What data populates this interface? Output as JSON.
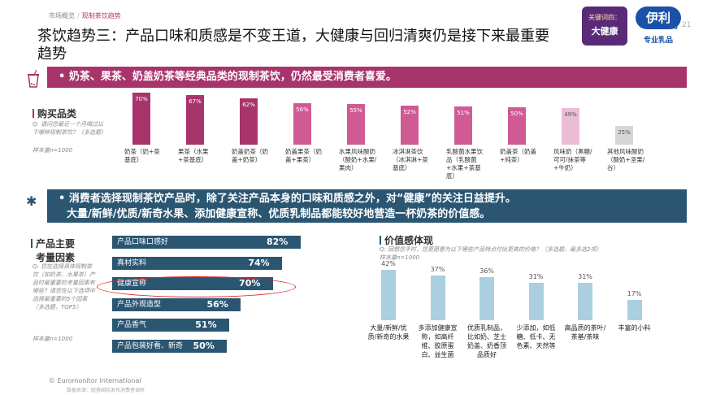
{
  "breadcrumb": {
    "parent": "市场概览",
    "current": "现制茶饮趋势"
  },
  "title": "茶饮趋势三：产品口味和质感是不变王道，大健康与回归清爽仍是接下来最重要趋势",
  "page_number": "21",
  "badge": {
    "line1": "关键词四：",
    "line2": "大健康"
  },
  "logo": {
    "mark": "伊利",
    "pro": "Pro",
    "sub": "专业乳品"
  },
  "banner1": "•  奶茶、果茶、奶盖奶茶等经典品类的现制茶饮，仍然最受消费者喜爱。",
  "banner2": {
    "line1": "•  消费者选择现制茶饮产品时，除了关注产品本身的口味和质感之外，对“健康”的关注日益提升。",
    "line2": "大量/新鲜/优质/新奇水果、添加健康宣称、优质乳制品都能较好地营造一杯奶茶的价值感。"
  },
  "purchase": {
    "heading": "购买品类",
    "note": "Q: 请问您最近一个月喝过以下哪种现制茶饮？（多选题）",
    "sample": "样本量n=1000",
    "colors": [
      "#a8346c",
      "#a8346c",
      "#a8346c",
      "#d05a94",
      "#d05a94",
      "#d05a94",
      "#d05a94",
      "#d05a94",
      "#ecbcd6",
      "#d6d6d6"
    ],
    "items": [
      {
        "label": "70%",
        "value": 70,
        "category": "奶茶（奶+茶基底）"
      },
      {
        "label": "67%",
        "value": 67,
        "category": "果茶（水果+茶基底）"
      },
      {
        "label": "62%",
        "value": 62,
        "category": "奶盖奶茶（奶盖+奶茶）"
      },
      {
        "label": "56%",
        "value": 56,
        "category": "奶盖果茶（奶盖+果茶）"
      },
      {
        "label": "55%",
        "value": 55,
        "category": "水果风味酸奶（酸奶+水果/果肉）"
      },
      {
        "label": "52%",
        "value": 52,
        "category": "冰淇淋茶饮（冰淇淋+茶基底）"
      },
      {
        "label": "51%",
        "value": 51,
        "category": "乳酸菌水果饮品（乳酸菌+水果+茶基底）"
      },
      {
        "label": "50%",
        "value": 50,
        "category": "奶盖茶（奶盖+纯茶）"
      },
      {
        "label": "49%",
        "value": 49,
        "category": "风味奶（黑糖/可可/抹茶等+牛奶）"
      },
      {
        "label": "25%",
        "value": 25,
        "category": "其他风味酸奶（酸奶+坚果/谷）"
      }
    ]
  },
  "factors": {
    "heading_line1": "产品主要",
    "heading_line2": "考量因素",
    "note": "Q: 您在选择具体现制茶饮（如奶茶、水果茶）产品时最重要的考量因素有哪些？请您在以下选项中选择最重要的5个因素（多选题，TOP5）",
    "sample": "样本量n=1000",
    "color": "#2b5672",
    "items": [
      {
        "label": "产品口味口感好",
        "value": 82,
        "display": "82%"
      },
      {
        "label": "真材实料",
        "value": 74,
        "display": "74%"
      },
      {
        "label": "健康宣称",
        "value": 70,
        "display": "70%"
      },
      {
        "label": "产品外观造型",
        "value": 56,
        "display": "56%"
      },
      {
        "label": "产品香气",
        "value": 51,
        "display": "51%"
      },
      {
        "label": "产品包装好看、新奇",
        "value": 50,
        "display": "50%"
      }
    ]
  },
  "value": {
    "heading": "价值感体现",
    "note": "Q: 回想您平时，您更愿意为以下哪些产品特点付出更高的价格？（多选题，最多选2项）",
    "sample": "样本量n=1000",
    "color": "#a9cfe1",
    "items": [
      {
        "label": "42%",
        "value": 42,
        "category": "大量/新鲜/优质/新奇的水果"
      },
      {
        "label": "37%",
        "value": 37,
        "category": "多添加健康宣称，如高纤维、胶原蛋白、益生菌"
      },
      {
        "label": "36%",
        "value": 36,
        "category": "优质乳制品，比如奶、芝士奶盖、奶香顶品质好"
      },
      {
        "label": "31%",
        "value": 31,
        "category": "少添加，如低糖、低卡、无色素、天然等"
      },
      {
        "label": "31%",
        "value": 31,
        "category": "高品质的茶叶/茶基/茶味"
      },
      {
        "label": "17%",
        "value": 17,
        "category": "丰富的小料"
      }
    ]
  },
  "footer": {
    "copyright": "© Euromonitor International",
    "source": "数据来源：欧睿国际发布消费者调研"
  }
}
